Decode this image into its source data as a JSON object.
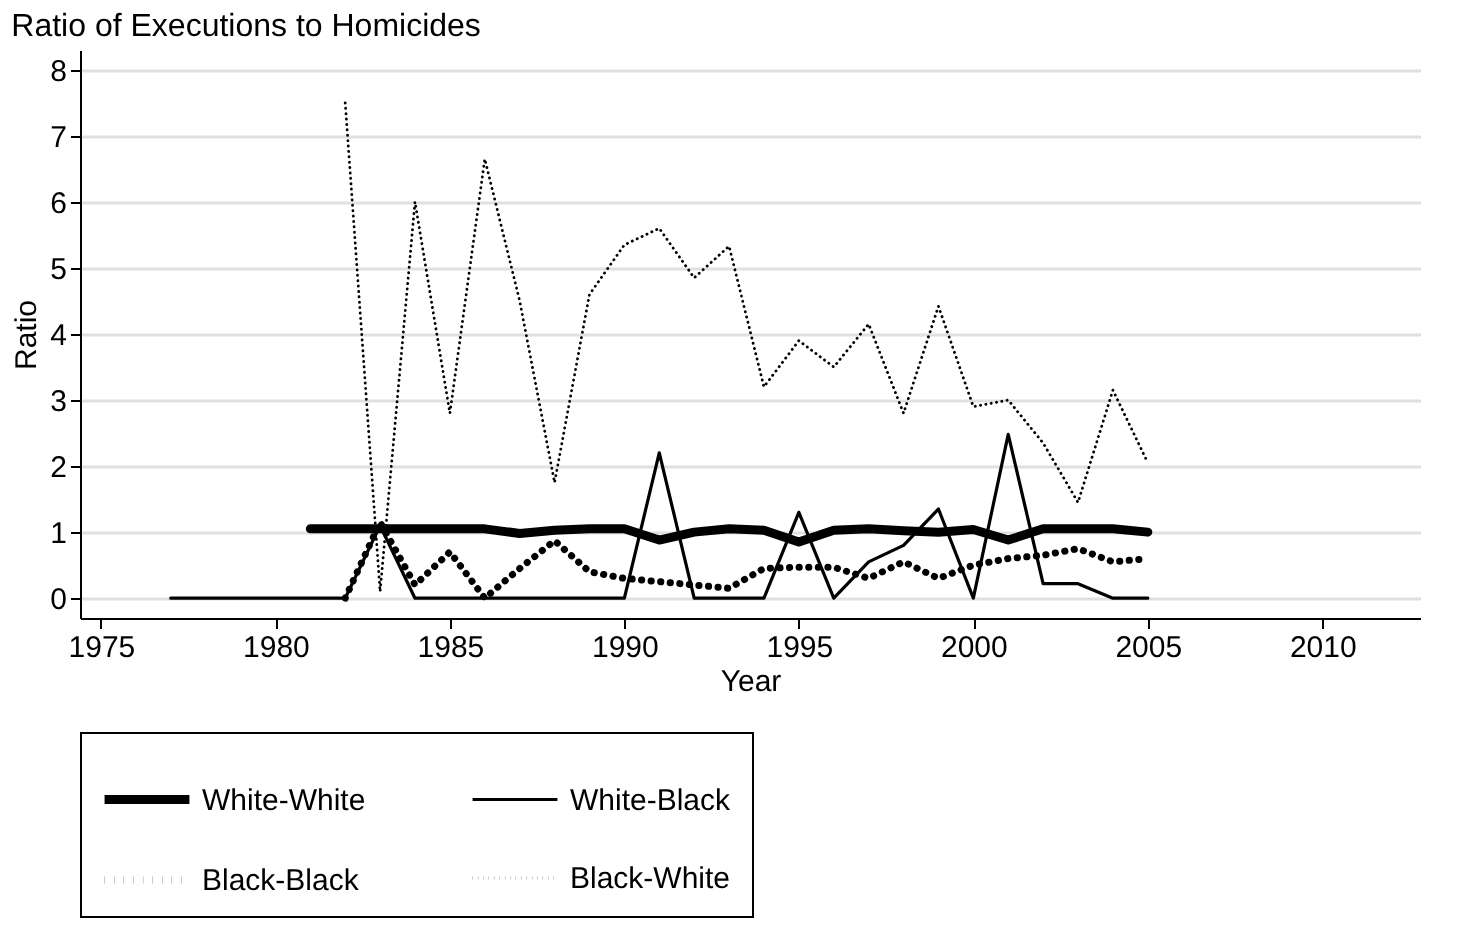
{
  "chart_data": {
    "type": "line",
    "title": "Ratio of Executions to Homicides",
    "xlabel": "Year",
    "ylabel": "Ratio",
    "xlim": [
      1974.4,
      2012.8
    ],
    "xticks": [
      1975,
      1980,
      1985,
      1990,
      1995,
      2000,
      2005,
      2010
    ],
    "ylim": [
      -0.3,
      8.3
    ],
    "yticks": [
      0,
      1,
      2,
      3,
      4,
      5,
      6,
      7,
      8
    ],
    "grid": "y",
    "legend": "bottom",
    "marker": "none",
    "series": [
      {
        "name": "White-White",
        "color": "#000000",
        "line_style": "solid",
        "x": [
          1981,
          1982,
          1983,
          1984,
          1985,
          1986,
          1987,
          1988,
          1989,
          1990,
          1991,
          1992,
          1993,
          1994,
          1995,
          1996,
          1997,
          1998,
          1999,
          2000,
          2001,
          2002,
          2003,
          2004,
          2005
        ],
        "values": [
          1.05,
          1.05,
          1.05,
          1.05,
          1.05,
          1.05,
          0.98,
          1.03,
          1.05,
          1.05,
          0.88,
          1.0,
          1.05,
          1.03,
          0.85,
          1.03,
          1.05,
          1.02,
          1.0,
          1.04,
          0.88,
          1.05,
          1.05,
          1.05,
          1.0
        ]
      },
      {
        "name": "White-Black",
        "color": "#000000",
        "line_style": "solid",
        "x": [
          1977,
          1978,
          1979,
          1980,
          1981,
          1982,
          1983,
          1984,
          1985,
          1986,
          1987,
          1988,
          1989,
          1990,
          1991,
          1992,
          1993,
          1994,
          1995,
          1996,
          1997,
          1998,
          1999,
          2000,
          2001,
          2002,
          2003,
          2004,
          2005
        ],
        "values": [
          0,
          0,
          0,
          0,
          0,
          0,
          1.1,
          0,
          0,
          0,
          0,
          0,
          0,
          0,
          2.2,
          0,
          0,
          0,
          1.3,
          0,
          0.55,
          0.8,
          1.35,
          0,
          2.48,
          0.22,
          0.22,
          0,
          0
        ]
      },
      {
        "name": "Black-Black",
        "color": "#000000",
        "line_style": "dotted",
        "x": [
          1982,
          1983,
          1984,
          1985,
          1986,
          1987,
          1988,
          1989,
          1990,
          1991,
          1992,
          1993,
          1994,
          1995,
          1996,
          1997,
          1998,
          1999,
          2000,
          2001,
          2002,
          2003,
          2004,
          2005
        ],
        "values": [
          0,
          1.15,
          0.2,
          0.7,
          0,
          0.45,
          0.87,
          0.4,
          0.3,
          0.25,
          0.2,
          0.15,
          0.45,
          0.47,
          0.47,
          0.3,
          0.55,
          0.3,
          0.5,
          0.6,
          0.65,
          0.75,
          0.55,
          0.6
        ]
      },
      {
        "name": "Black-White",
        "color": "#000000",
        "line_style": "dotted",
        "x": [
          1982,
          1983,
          1984,
          1985,
          1986,
          1987,
          1988,
          1989,
          1990,
          1991,
          1992,
          1993,
          1994,
          1995,
          1996,
          1997,
          1998,
          1999,
          2000,
          2001,
          2002,
          2003,
          2004,
          2005
        ],
        "values": [
          7.5,
          0.1,
          6.0,
          2.8,
          6.65,
          4.5,
          1.75,
          4.6,
          5.35,
          5.6,
          4.85,
          5.33,
          3.2,
          3.9,
          3.5,
          4.15,
          2.8,
          4.42,
          2.9,
          3.0,
          2.35,
          1.45,
          3.15,
          2.05
        ]
      }
    ]
  }
}
